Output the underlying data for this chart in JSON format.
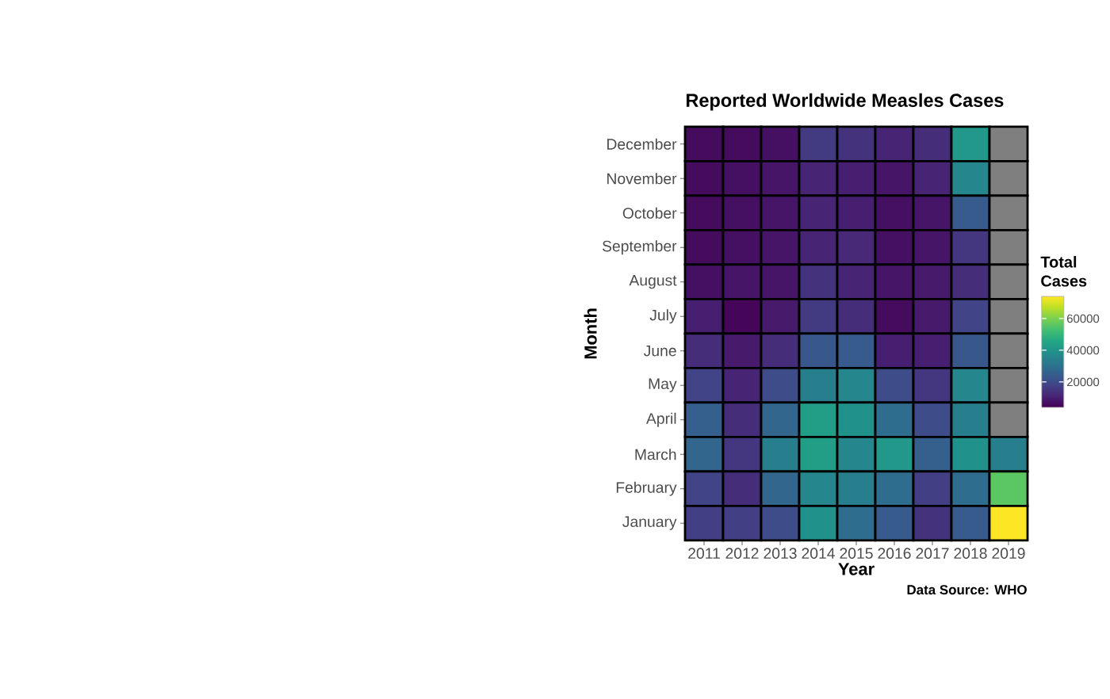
{
  "chart_data": {
    "type": "heatmap",
    "title": "Reported Worldwide Measles Cases",
    "xlabel": "Year",
    "ylabel": "Month",
    "clabel": "Total Cases",
    "annotations": [
      "Data Source: WHO"
    ],
    "categories": [
      "2011",
      "2012",
      "2013",
      "2014",
      "2015",
      "2016",
      "2017",
      "2018",
      "2019"
    ],
    "y_categories": [
      "December",
      "November",
      "October",
      "September",
      "August",
      "July",
      "June",
      "May",
      "April",
      "March",
      "February",
      "January"
    ],
    "cells": [
      [
        6000,
        6000,
        7000,
        16000,
        14000,
        11000,
        13000,
        41000,
        null
      ],
      [
        6000,
        7000,
        8000,
        11000,
        10000,
        8000,
        11000,
        36000,
        null
      ],
      [
        6000,
        7000,
        8000,
        11000,
        10000,
        7000,
        8000,
        24000,
        null
      ],
      [
        6000,
        7000,
        8000,
        11000,
        12000,
        7000,
        8000,
        15000,
        null
      ],
      [
        7000,
        8000,
        8000,
        14000,
        11000,
        8000,
        9000,
        13000,
        null
      ],
      [
        10000,
        5000,
        9000,
        16000,
        13000,
        6000,
        9000,
        18000,
        null
      ],
      [
        13000,
        9000,
        13000,
        23000,
        24000,
        10000,
        10000,
        23000,
        null
      ],
      [
        18000,
        11000,
        20000,
        34000,
        36000,
        20000,
        15000,
        36000,
        null
      ],
      [
        25000,
        13000,
        27000,
        43000,
        39000,
        29000,
        20000,
        34000,
        null
      ],
      [
        27000,
        15000,
        34000,
        43000,
        36000,
        41000,
        25000,
        39000,
        34000
      ],
      [
        18000,
        13000,
        27000,
        36000,
        34000,
        29000,
        17000,
        29000,
        56000
      ],
      [
        17000,
        17000,
        20000,
        39000,
        29000,
        24000,
        14000,
        24000,
        74000
      ]
    ],
    "clim": [
      4000,
      74000
    ],
    "cticks": [
      20000,
      40000,
      60000
    ]
  }
}
